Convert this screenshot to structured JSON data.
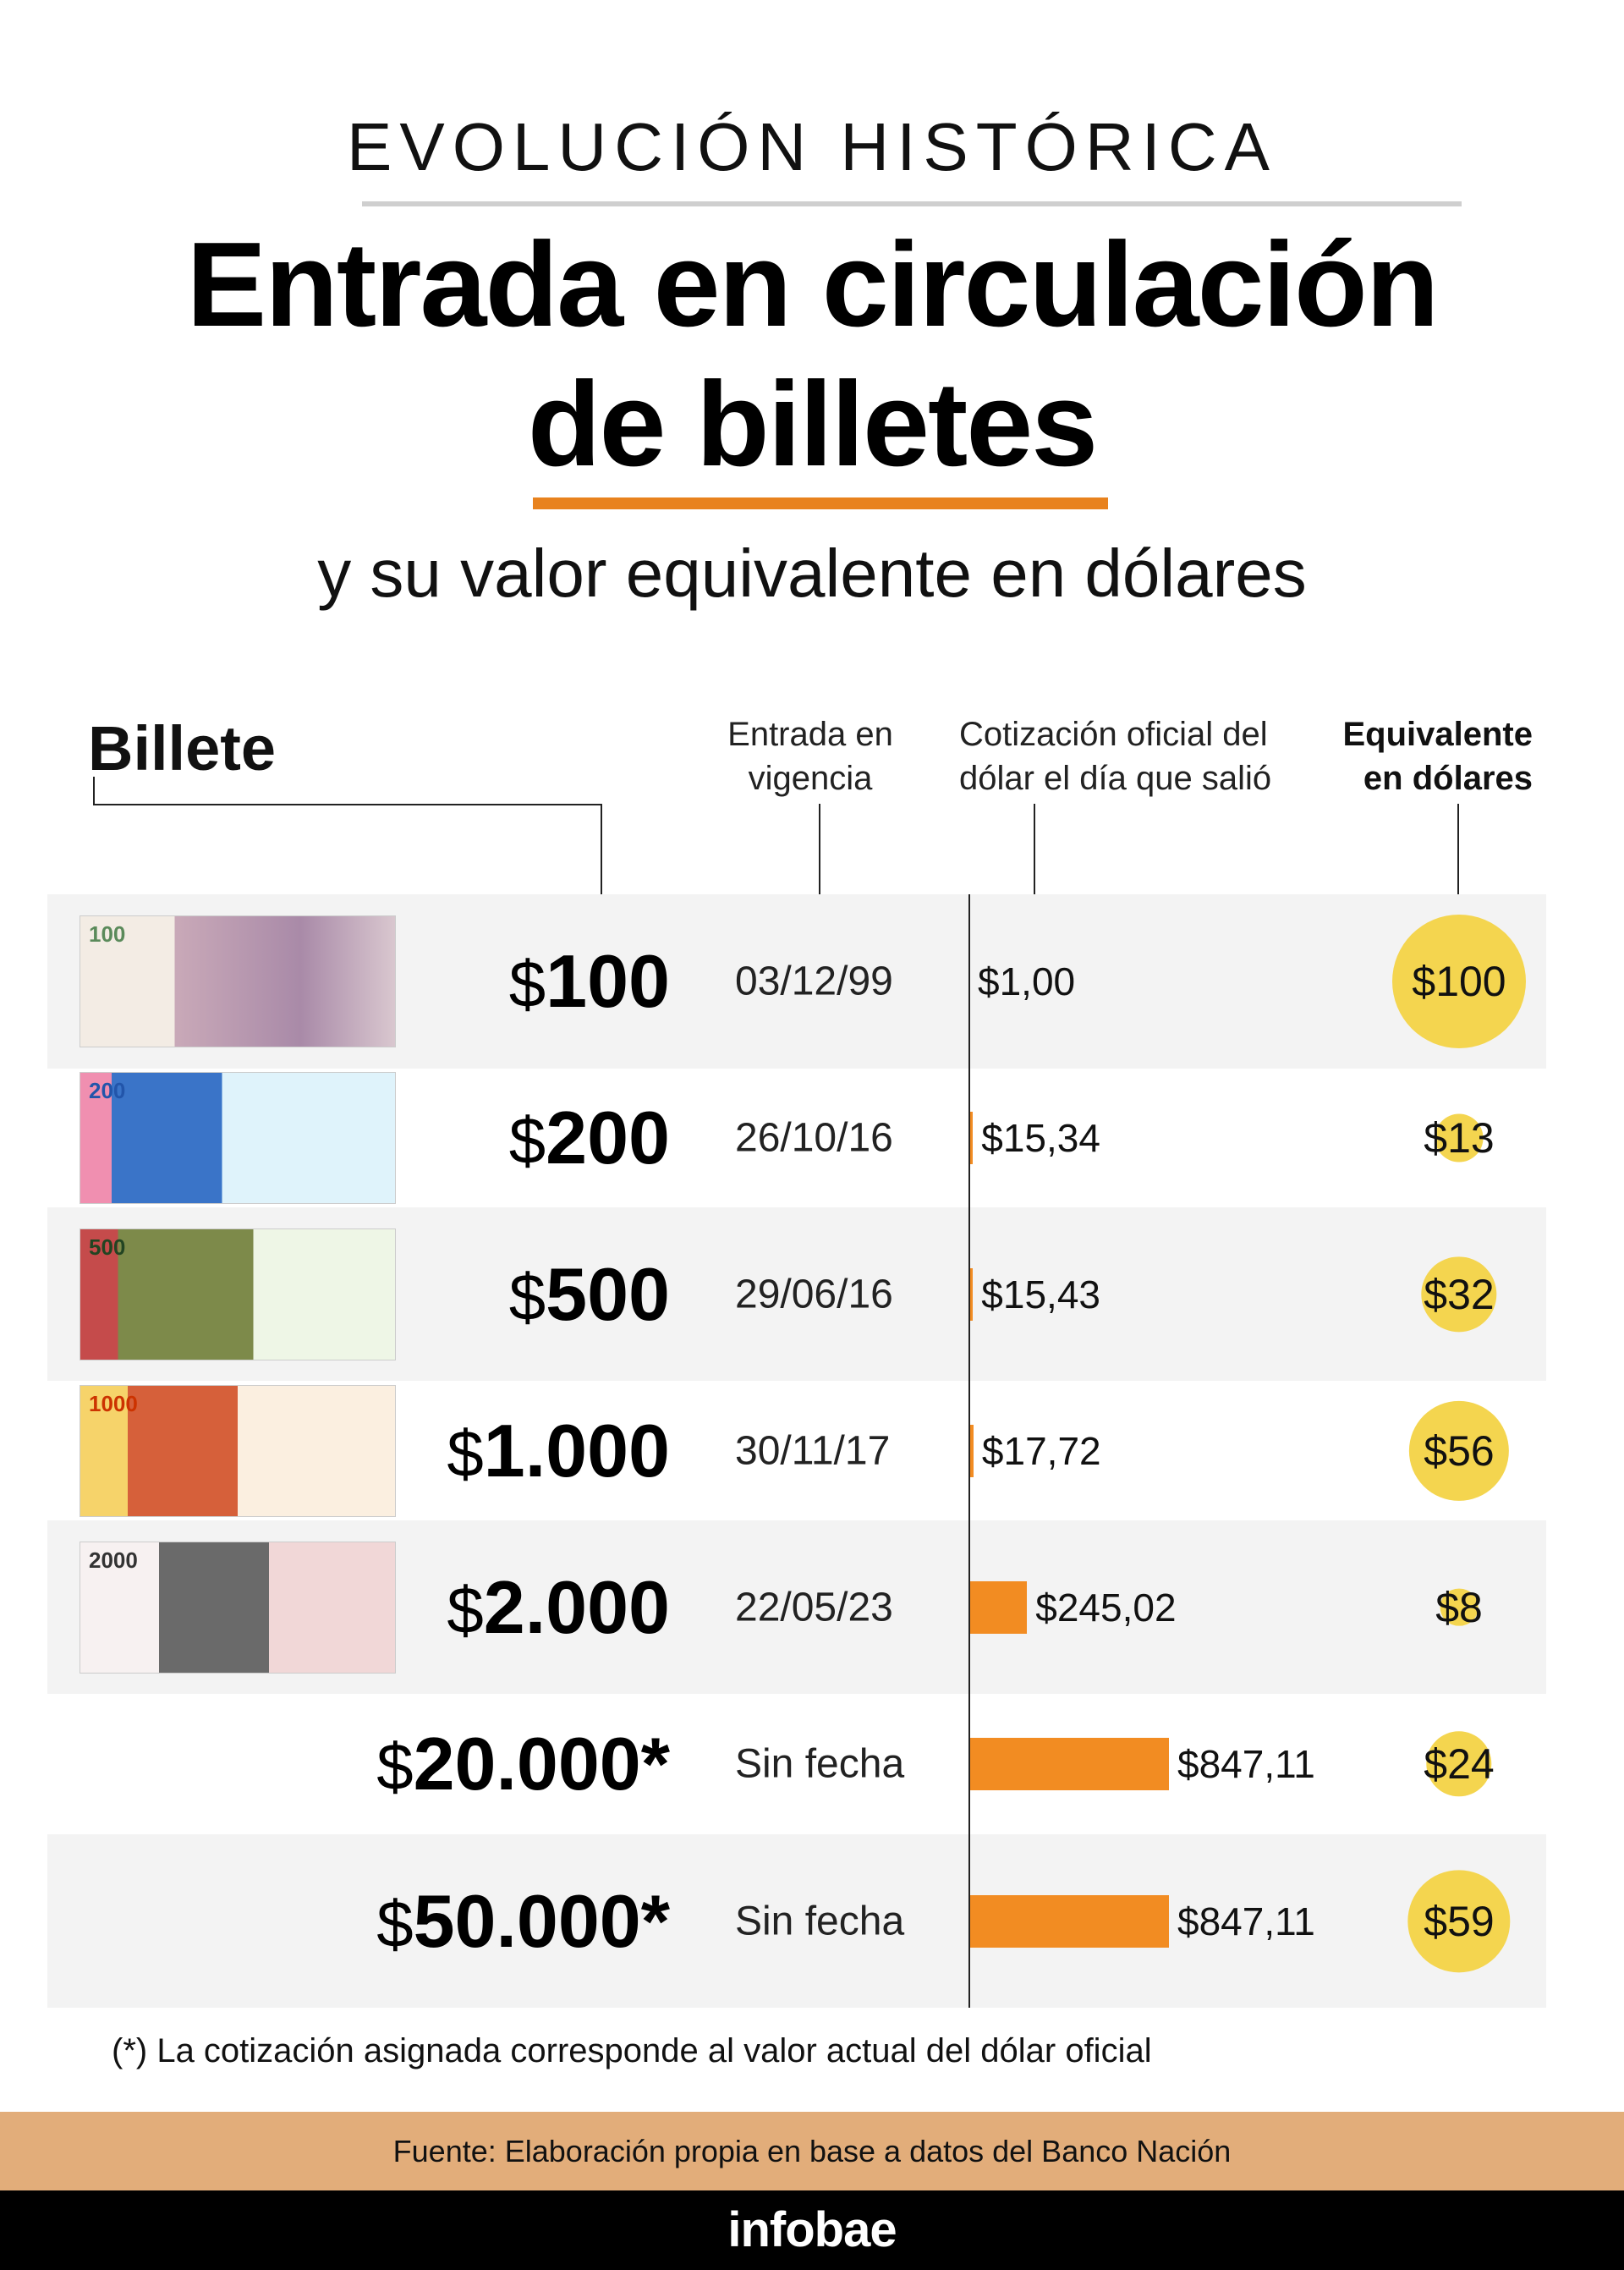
{
  "header": {
    "kicker": "EVOLUCIÓN HISTÓRICA",
    "title_line1": "Entrada en circulación",
    "title_line2": "de billetes",
    "subtitle": "y su valor equivalente en dólares"
  },
  "columns": {
    "billete": "Billete",
    "date_line1": "Entrada en",
    "date_line2": "vigencia",
    "rate_line1": "Cotización oficial del",
    "rate_line2": "dólar el día que salió",
    "usd_line1": "Equivalente",
    "usd_line2": "en dólares"
  },
  "colors": {
    "bar": "#f28c22",
    "circle": "#f4d54f",
    "accent": "#e8821e",
    "source_band": "#e2ad7a"
  },
  "chart_data": {
    "type": "table",
    "rows": [
      {
        "denomination": "100",
        "suffix": "",
        "date": "03/12/99",
        "rate": 1.0,
        "rate_label": "$1,00",
        "usd": 100,
        "usd_label": "$100",
        "note_label": "100",
        "has_image": true
      },
      {
        "denomination": "200",
        "suffix": "",
        "date": "26/10/16",
        "rate": 15.34,
        "rate_label": "$15,34",
        "usd": 13,
        "usd_label": "$13",
        "note_label": "200",
        "has_image": true
      },
      {
        "denomination": "500",
        "suffix": "",
        "date": "29/06/16",
        "rate": 15.43,
        "rate_label": "$15,43",
        "usd": 32,
        "usd_label": "$32",
        "note_label": "500",
        "has_image": true
      },
      {
        "denomination": "1.000",
        "suffix": "",
        "date": "30/11/17",
        "rate": 17.72,
        "rate_label": "$17,72",
        "usd": 56,
        "usd_label": "$56",
        "note_label": "1000",
        "has_image": true
      },
      {
        "denomination": "2.000",
        "suffix": "",
        "date": "22/05/23",
        "rate": 245.02,
        "rate_label": "$245,02",
        "usd": 8,
        "usd_label": "$8",
        "note_label": "2000",
        "has_image": true
      },
      {
        "denomination": "20.000",
        "suffix": "*",
        "date": "Sin fecha",
        "rate": 847.11,
        "rate_label": "$847,11",
        "usd": 24,
        "usd_label": "$24",
        "has_image": false
      },
      {
        "denomination": "50.000",
        "suffix": "*",
        "date": "Sin fecha",
        "rate": 847.11,
        "rate_label": "$847,11",
        "usd": 59,
        "usd_label": "$59",
        "has_image": false
      }
    ]
  },
  "footnote": "(*) La cotización asignada corresponde al valor actual del dólar oficial",
  "source": "Fuente: Elaboración propia en base a datos del Banco Nación",
  "brand": "infobae"
}
